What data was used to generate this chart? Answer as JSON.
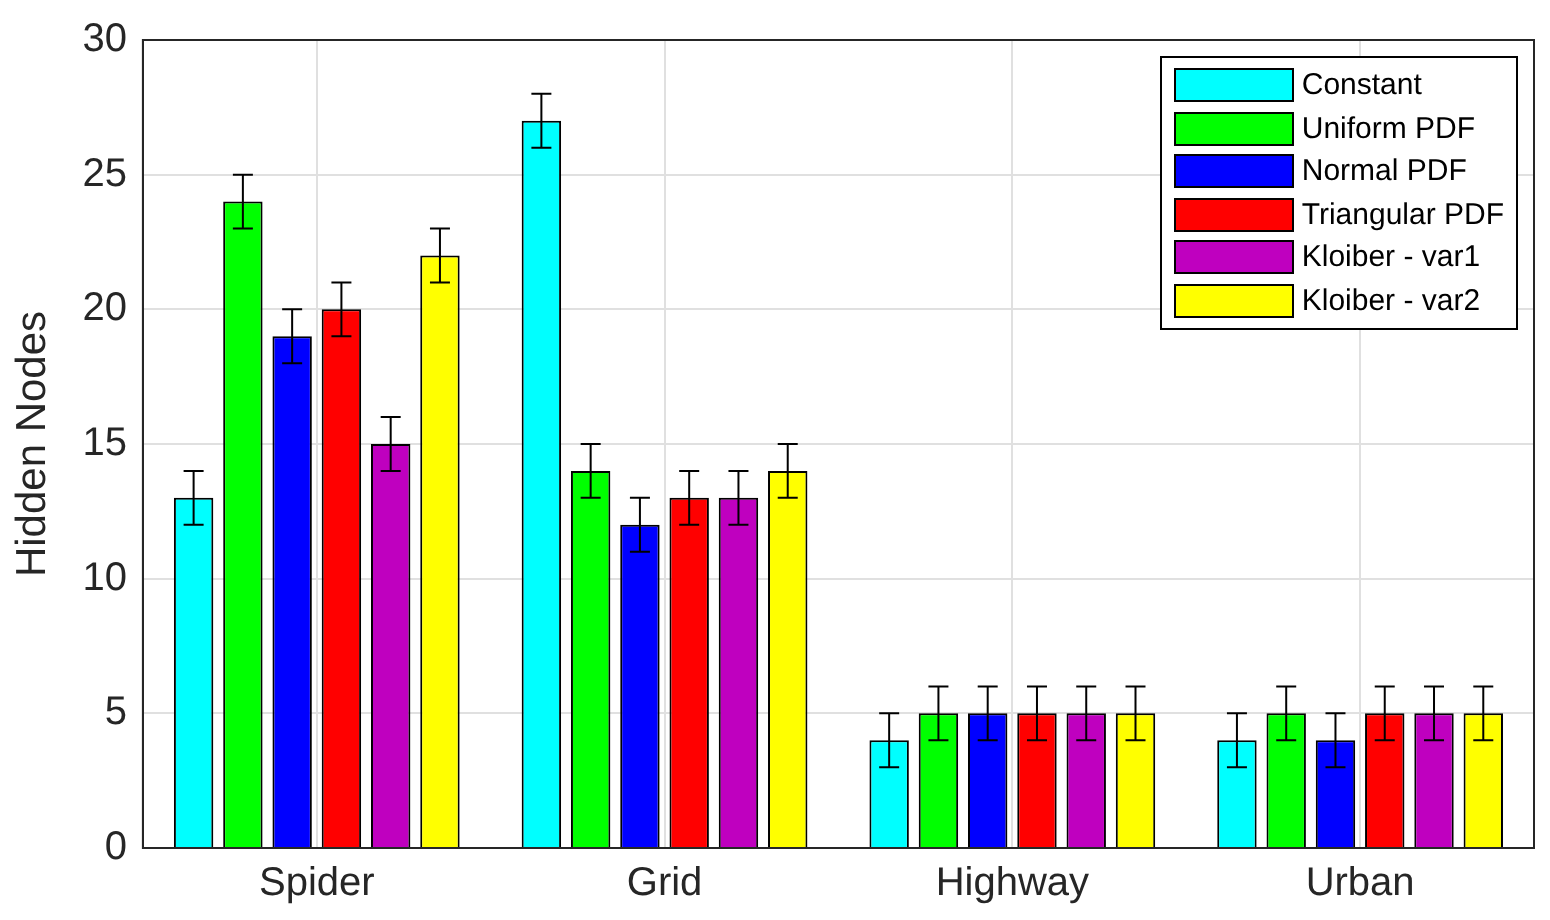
{
  "chart_data": {
    "type": "bar",
    "ylabel": "Hidden Nodes",
    "categories": [
      "Spider",
      "Grid",
      "Highway",
      "Urban"
    ],
    "series": [
      {
        "name": "Constant",
        "color": "#00ffff",
        "values": [
          13,
          27,
          4,
          4
        ],
        "errors": [
          1,
          1,
          1,
          1
        ]
      },
      {
        "name": "Uniform PDF",
        "color": "#00ff00",
        "values": [
          24,
          14,
          5,
          5
        ],
        "errors": [
          1,
          1,
          1,
          1
        ]
      },
      {
        "name": "Normal PDF",
        "color": "#0000ff",
        "values": [
          19,
          12,
          5,
          4
        ],
        "errors": [
          1,
          1,
          1,
          1
        ]
      },
      {
        "name": "Triangular PDF",
        "color": "#ff0000",
        "values": [
          20,
          13,
          5,
          5
        ],
        "errors": [
          1,
          1,
          1,
          1
        ]
      },
      {
        "name": "Kloiber - var1",
        "color": "#bf00bf",
        "values": [
          15,
          13,
          5,
          5
        ],
        "errors": [
          1,
          1,
          1,
          1
        ]
      },
      {
        "name": "Kloiber - var2",
        "color": "#ffff00",
        "values": [
          22,
          14,
          5,
          5
        ],
        "errors": [
          1,
          1,
          1,
          1
        ]
      }
    ],
    "ylim": [
      0,
      30
    ],
    "yticks": [
      0,
      5,
      10,
      15,
      20,
      25,
      30
    ],
    "grid": true,
    "legend": "top right"
  }
}
